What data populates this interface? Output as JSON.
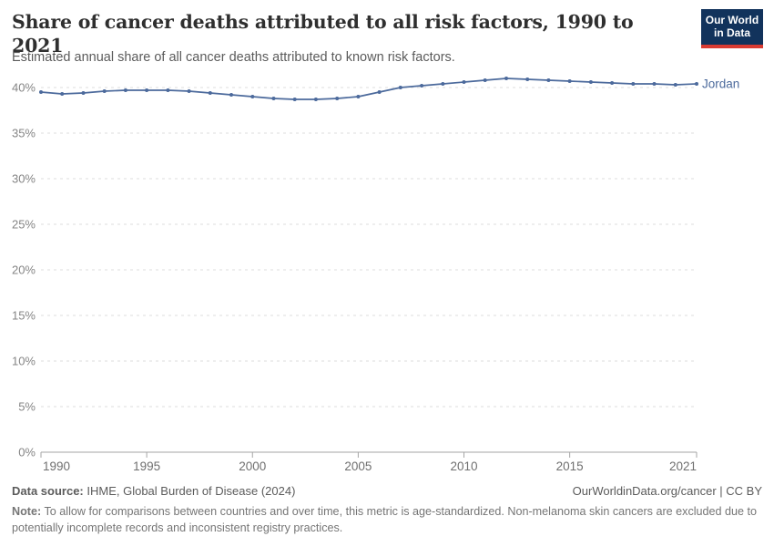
{
  "header": {
    "title": "Share of cancer deaths attributed to all risk factors, 1990 to 2021",
    "subtitle": "Estimated annual share of all cancer deaths attributed to known risk factors.",
    "logo": {
      "line1": "Our World",
      "line2": "in Data",
      "bg_color": "#12335C",
      "bar_color": "#D93B32"
    }
  },
  "chart_data": {
    "type": "line",
    "title": "Share of cancer deaths attributed to all risk factors, 1990 to 2021",
    "xlabel": "",
    "ylabel": "",
    "x": [
      1990,
      1991,
      1992,
      1993,
      1994,
      1995,
      1996,
      1997,
      1998,
      1999,
      2000,
      2001,
      2002,
      2003,
      2004,
      2005,
      2006,
      2007,
      2008,
      2009,
      2010,
      2011,
      2012,
      2013,
      2014,
      2015,
      2016,
      2017,
      2018,
      2019,
      2020,
      2021
    ],
    "series": [
      {
        "name": "Jordan",
        "color": "#4C6A9C",
        "values": [
          39.5,
          39.3,
          39.4,
          39.6,
          39.7,
          39.7,
          39.7,
          39.6,
          39.4,
          39.2,
          39.0,
          38.8,
          38.7,
          38.7,
          38.8,
          39.0,
          39.5,
          40.0,
          40.2,
          40.4,
          40.6,
          40.8,
          41.0,
          40.9,
          40.8,
          40.7,
          40.6,
          40.5,
          40.4,
          40.4,
          40.3,
          40.4
        ]
      }
    ],
    "ylim": [
      0,
      40
    ],
    "xlim": [
      1990,
      2021
    ],
    "yticks": [
      0,
      5,
      10,
      15,
      20,
      25,
      30,
      35,
      40
    ],
    "ytick_labels": [
      "0%",
      "5%",
      "10%",
      "15%",
      "20%",
      "25%",
      "30%",
      "35%",
      "40%"
    ],
    "xticks": [
      1990,
      1995,
      2000,
      2005,
      2010,
      2015,
      2021
    ],
    "xtick_labels": [
      "1990",
      "1995",
      "2000",
      "2005",
      "2010",
      "2015",
      "2021"
    ],
    "grid": "horizontal-dashed",
    "legend_position": "line-end-label",
    "entity_label": "Jordan",
    "marker": "dot-every-year"
  },
  "footer": {
    "data_source_label": "Data source:",
    "data_source_value": "IHME, Global Burden of Disease (2024)",
    "license": "OurWorldinData.org/cancer | CC BY",
    "note_label": "Note:",
    "note_text": "To allow for comparisons between countries and over time, this metric is age-standardized. Non-melanoma skin cancers are excluded due to potentially incomplete records and inconsistent registry practices."
  }
}
